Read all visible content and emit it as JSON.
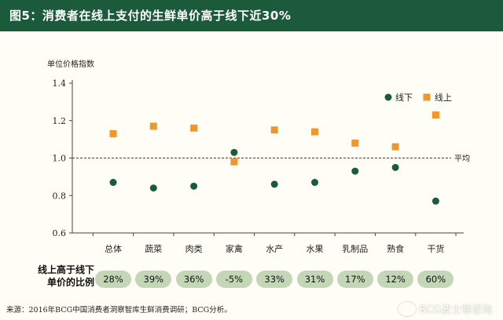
{
  "header": {
    "title": "图5：消费者在线上支付的生鲜单价高于线下近30%"
  },
  "chart_data": {
    "type": "scatter",
    "ylabel": "单位价格指数",
    "ylim": [
      0.6,
      1.4
    ],
    "yticks": [
      "0.6",
      "0.8",
      "1.0",
      "1.2",
      "1.4"
    ],
    "categories": [
      "总体",
      "蔬菜",
      "肉类",
      "家禽",
      "水产",
      "水果",
      "乳制品",
      "熟食",
      "干货"
    ],
    "series": [
      {
        "name": "线下",
        "color": "#1c5a3c",
        "marker": "circle",
        "values": [
          0.87,
          0.84,
          0.85,
          1.03,
          0.86,
          0.87,
          0.93,
          0.95,
          0.77
        ]
      },
      {
        "name": "线上",
        "color": "#f0962c",
        "marker": "square",
        "values": [
          1.13,
          1.17,
          1.16,
          0.98,
          1.15,
          1.14,
          1.08,
          1.06,
          1.23
        ]
      }
    ],
    "reference_line": {
      "value": 1.0,
      "label": "平均",
      "color": "#c8282d",
      "style": "dashed"
    },
    "legend_position": "top-right",
    "grid": false
  },
  "diff_row": {
    "title_line1": "线上高于线下",
    "title_line2": "单价的比例",
    "values": [
      "28%",
      "39%",
      "36%",
      "-5%",
      "33%",
      "31%",
      "17%",
      "12%",
      "60%"
    ]
  },
  "footer": {
    "source": "来源：2016年BCG中国消费者洞察智库生鲜消费调研；BCG分析。",
    "watermark": "BCG波士顿咨询"
  }
}
